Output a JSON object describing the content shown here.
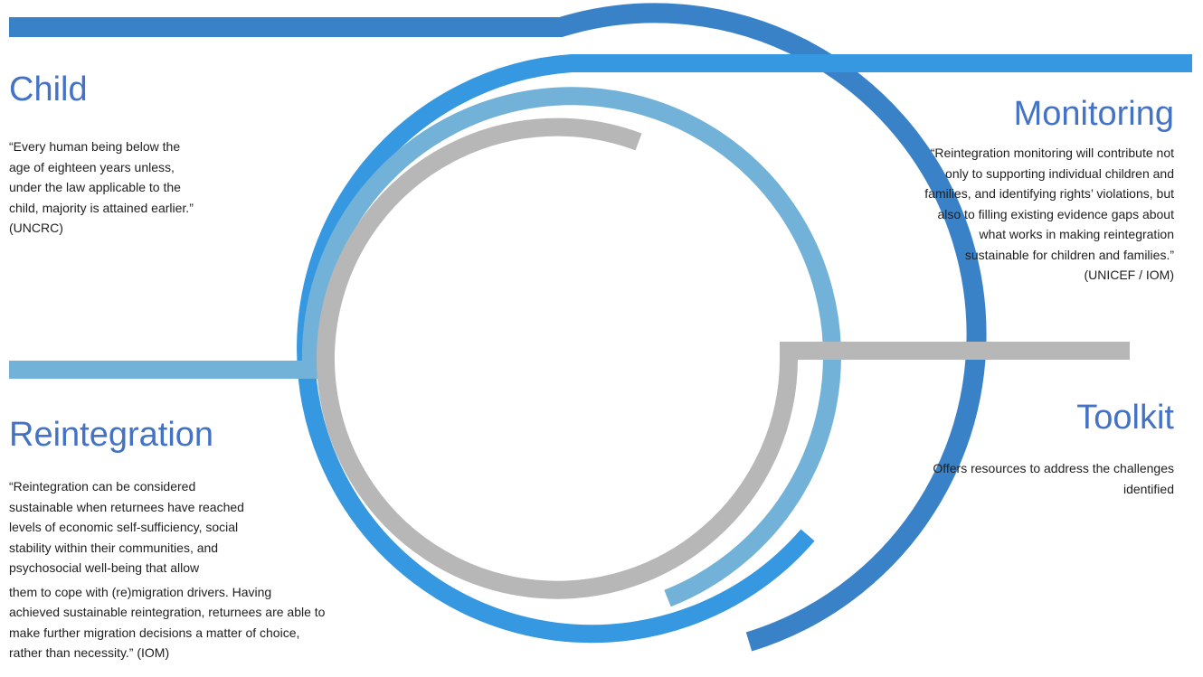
{
  "colors": {
    "heading": "#4472c4",
    "arc_outer_dark": "#3a82c8",
    "arc_outer_bright": "#3698e0",
    "arc_light": "#72b2d8",
    "arc_grey": "#b7b7b7",
    "text": "#1e1e1e"
  },
  "sections": {
    "child": {
      "heading": "Child",
      "lines": [
        "“Every human being below the",
        "age of eighteen years unless,",
        "under the law applicable to the",
        "child, majority is attained earlier.”",
        "(UNCRC)"
      ]
    },
    "monitoring": {
      "heading": "Monitoring",
      "lines": [
        "“Reintegration monitoring will contribute not",
        "only to supporting individual children and",
        "families, and identifying rights’ violations, but",
        "also to filling existing evidence gaps about",
        "what works in making reintegration",
        "sustainable for children and families.”",
        "(UNICEF / IOM)"
      ]
    },
    "reintegration": {
      "heading": "Reintegration",
      "lines": [
        "“Reintegration can be considered",
        "sustainable when returnees have reached",
        "levels of economic self-sufficiency, social",
        "stability within their communities, and",
        "psychosocial well-being that allow",
        "them to cope with (re)migration drivers. Having",
        "achieved sustainable reintegration, returnees are able to",
        "make further migration decisions a matter of choice,",
        "rather than necessity.” (IOM)"
      ]
    },
    "toolkit": {
      "heading": "Toolkit",
      "lines": [
        "Offers resources to address the challenges",
        "identified"
      ]
    }
  }
}
